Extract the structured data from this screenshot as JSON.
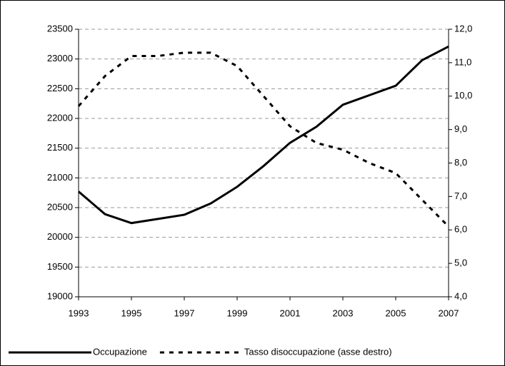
{
  "chart_data": {
    "type": "line",
    "x": [
      1993,
      1994,
      1995,
      1996,
      1997,
      1998,
      1999,
      2000,
      2001,
      2002,
      2003,
      2004,
      2005,
      2006,
      2007
    ],
    "series": [
      {
        "name": "Occupazione",
        "color": "#000000",
        "dash": "solid",
        "values": [
          20770,
          20390,
          20240,
          20310,
          20380,
          20570,
          20850,
          21200,
          21590,
          21860,
          22230,
          22390,
          22550,
          22980,
          23210
        ]
      },
      {
        "name": "Tasso disoccupazione (asse destro)",
        "color": "#000000",
        "dash": "dashed",
        "axis": "y2",
        "values": [
          9.7,
          10.6,
          11.2,
          11.2,
          11.3,
          11.3,
          10.9,
          10.0,
          9.1,
          8.6,
          8.4,
          8.0,
          7.7,
          6.9,
          6.1
        ]
      }
    ],
    "xlim": [
      1993,
      2007
    ],
    "xticks": [
      1993,
      1995,
      1997,
      1999,
      2001,
      2003,
      2005,
      2007
    ],
    "ylim": [
      19000,
      23500
    ],
    "yticks": [
      19000,
      19500,
      20000,
      20500,
      21000,
      21500,
      22000,
      22500,
      23000,
      23500
    ],
    "y2lim": [
      4,
      12
    ],
    "y2ticks": [
      {
        "value": 4,
        "label": "4,0"
      },
      {
        "value": 5,
        "label": "5,0"
      },
      {
        "value": 6,
        "label": "6,0"
      },
      {
        "value": 7,
        "label": "7,0"
      },
      {
        "value": 8,
        "label": "8,0"
      },
      {
        "value": 9,
        "label": "9,0"
      },
      {
        "value": 10,
        "label": "10,0"
      },
      {
        "value": 11,
        "label": "11,0"
      },
      {
        "value": 12,
        "label": "12,0"
      }
    ],
    "grid": true,
    "legend": "bottom"
  }
}
